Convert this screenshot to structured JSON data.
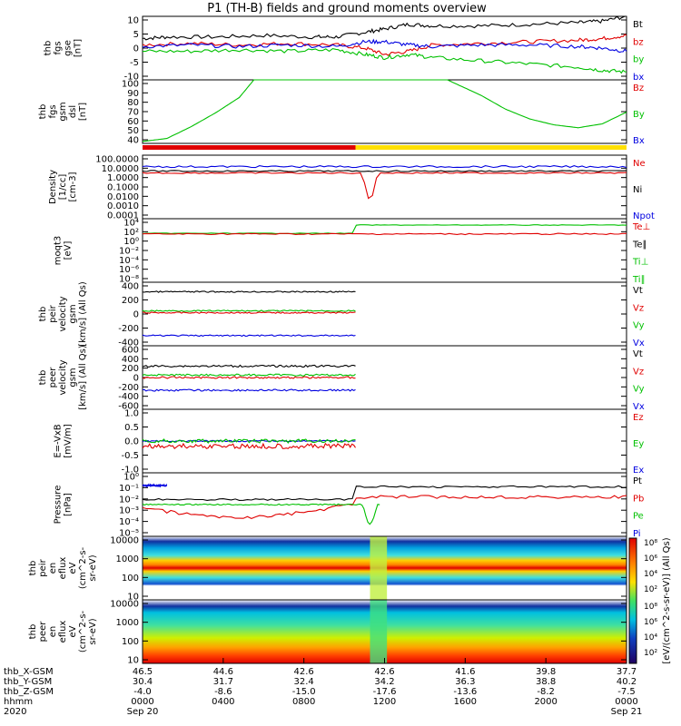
{
  "title": "P1 (TH-B) fields and ground moments overview",
  "chart_data": [
    {
      "type": "line",
      "panel": "fgs-gse",
      "ylabel": [
        "thb",
        "fgs",
        "gse",
        "[nT]"
      ],
      "yticks": [
        10,
        5,
        0,
        -5,
        -10
      ],
      "ylim": [
        -10,
        10
      ],
      "legend": [
        {
          "label": "Bt",
          "color": "#000000"
        },
        {
          "label": "bz",
          "color": "#e00000"
        },
        {
          "label": "by",
          "color": "#00c000"
        },
        {
          "label": "bx",
          "color": "#0000e0"
        }
      ],
      "series": [
        {
          "name": "Bt",
          "color": "#000000",
          "x": [
            0.0,
            0.05,
            0.15,
            0.25,
            0.35,
            0.4,
            0.46,
            0.5,
            0.55,
            0.6,
            0.7,
            0.8,
            0.9,
            0.95,
            1.0
          ],
          "values": [
            3,
            3.5,
            3.5,
            4,
            3.5,
            3.5,
            5,
            6,
            7.5,
            7,
            7,
            7.5,
            8,
            8.5,
            10
          ]
        },
        {
          "name": "bz",
          "color": "#e00000",
          "x": [
            0.0,
            0.1,
            0.2,
            0.3,
            0.4,
            0.46,
            0.5,
            0.55,
            0.6,
            0.7,
            0.8,
            0.9,
            0.95,
            1.0
          ],
          "values": [
            1,
            1.5,
            1,
            1.5,
            1,
            0,
            -2,
            -1,
            1,
            1.5,
            2,
            2.5,
            3,
            4
          ]
        },
        {
          "name": "by",
          "color": "#00c000",
          "x": [
            0.0,
            0.1,
            0.2,
            0.3,
            0.4,
            0.46,
            0.5,
            0.55,
            0.6,
            0.7,
            0.8,
            0.9,
            0.95,
            1.0
          ],
          "values": [
            -1,
            -1,
            -0.5,
            -1,
            -0.5,
            -2,
            -3,
            -2,
            -3,
            -4,
            -5,
            -6,
            -7,
            -7.5
          ]
        },
        {
          "name": "bx",
          "color": "#0000e0",
          "x": [
            0.0,
            0.1,
            0.2,
            0.3,
            0.4,
            0.46,
            0.5,
            0.55,
            0.6,
            0.7,
            0.8,
            0.9,
            0.95,
            1.0
          ],
          "values": [
            0.5,
            1,
            0.5,
            1,
            0.5,
            2,
            2,
            1,
            0.5,
            1,
            1,
            0.5,
            0,
            -1
          ]
        }
      ]
    },
    {
      "type": "line",
      "panel": "fgs-gsm-dsl",
      "ylabel": [
        "thb",
        "fgs",
        "gsm",
        "dsl",
        "[nT]"
      ],
      "yticks": [
        100,
        90,
        80,
        70,
        60,
        50,
        40
      ],
      "ylim": [
        35,
        100
      ],
      "legend": [
        {
          "label": "Bz",
          "color": "#e00000"
        },
        {
          "label": "By",
          "color": "#00c000"
        },
        {
          "label": "Bx",
          "color": "#0000e0"
        }
      ],
      "series": [
        {
          "name": "By",
          "color": "#00c000",
          "x": [
            0.0,
            0.05,
            0.1,
            0.15,
            0.2,
            0.23,
            0.63,
            0.7,
            0.75,
            0.8,
            0.85,
            0.9,
            0.95,
            1.0
          ],
          "values": [
            37,
            40,
            52,
            66,
            82,
            100,
            100,
            84,
            70,
            60,
            54,
            51,
            55,
            67
          ]
        }
      ]
    },
    {
      "type": "line",
      "panel": "density",
      "ylabel": [
        "Density",
        "[1/cc]",
        "[cm-3]"
      ],
      "yticks": [
        "100.0000",
        "10.0000",
        "1.0000",
        "0.1000",
        "0.0100",
        "0.0010",
        "0.0001"
      ],
      "legend": [
        {
          "label": "Ne",
          "color": "#e00000"
        },
        {
          "label": "Ni",
          "color": "#000000"
        },
        {
          "label": "Npot",
          "color": "#0000e0"
        }
      ]
    },
    {
      "type": "line",
      "panel": "moqt3",
      "ylabel": [
        "moqt3",
        "[eV]"
      ],
      "yticks": [
        "10⁴",
        "10²",
        "10⁰",
        "10⁻²",
        "10⁻⁴",
        "10⁻⁶",
        "10⁻⁸"
      ],
      "legend": [
        {
          "label": "Te⊥",
          "color": "#e00000"
        },
        {
          "label": "Te∥",
          "color": "#000000"
        },
        {
          "label": "Ti⊥",
          "color": "#00c000"
        },
        {
          "label": "Ti∥",
          "color": "#00c000"
        }
      ]
    },
    {
      "type": "line",
      "panel": "peir-velocity",
      "ylabel": [
        "thb",
        "peir",
        "velocity",
        "gsm",
        "[km/s] (All Qs)"
      ],
      "yticks": [
        400,
        200,
        0,
        -200,
        -400
      ],
      "ylim": [
        -400,
        400
      ],
      "legend": [
        {
          "label": "Vt",
          "color": "#000000"
        },
        {
          "label": "Vz",
          "color": "#e00000"
        },
        {
          "label": "Vy",
          "color": "#00c000"
        },
        {
          "label": "Vx",
          "color": "#0000e0"
        }
      ]
    },
    {
      "type": "line",
      "panel": "peer-velocity",
      "ylabel": [
        "thb",
        "peer",
        "velocity",
        "gsm",
        "[km/s] (All Qs)"
      ],
      "yticks": [
        600,
        400,
        200,
        0,
        -200,
        -400,
        -600
      ],
      "ylim": [
        -600,
        600
      ],
      "legend": [
        {
          "label": "Vt",
          "color": "#000000"
        },
        {
          "label": "Vz",
          "color": "#e00000"
        },
        {
          "label": "Vy",
          "color": "#00c000"
        },
        {
          "label": "Vx",
          "color": "#0000e0"
        }
      ]
    },
    {
      "type": "line",
      "panel": "efield",
      "ylabel": [
        "E=-VxB",
        "[mV/m]"
      ],
      "yticks": [
        "1.0",
        "0.5",
        "0.0",
        "-0.5",
        "-1.0"
      ],
      "ylim": [
        -1.25,
        1.25
      ],
      "legend": [
        {
          "label": "Ez",
          "color": "#e00000"
        },
        {
          "label": "Ey",
          "color": "#00c000"
        },
        {
          "label": "Ex",
          "color": "#0000e0"
        }
      ]
    },
    {
      "type": "line",
      "panel": "pressure",
      "ylabel": [
        "Pressure",
        "[nPa]"
      ],
      "yticks": [
        "10⁰",
        "10⁻¹",
        "10⁻²",
        "10⁻³",
        "10⁻⁴",
        "10⁻⁵"
      ],
      "legend": [
        {
          "label": "Pt",
          "color": "#000000"
        },
        {
          "label": "Pb",
          "color": "#e00000"
        },
        {
          "label": "Pe",
          "color": "#00c000"
        },
        {
          "label": "Pi",
          "color": "#0000e0"
        }
      ]
    },
    {
      "type": "heatmap",
      "panel": "peir-en-eflux",
      "ylabel": [
        "thb",
        "peir",
        "en",
        "eflux",
        "eV",
        "(cm^2-s-",
        "sr-eV)"
      ],
      "yticks": [
        "10000",
        "1000",
        "100",
        "10"
      ],
      "colorbar_ticks": [
        "10⁸",
        "10⁶",
        "10⁴",
        "10²"
      ]
    },
    {
      "type": "heatmap",
      "panel": "peer-en-eflux",
      "ylabel": [
        "thb",
        "peer",
        "en",
        "eflux",
        "eV",
        "(cm^2-s-",
        "sr-eV)"
      ],
      "yticks": [
        "10000",
        "1000",
        "100",
        "10"
      ],
      "colorbar_ticks": [
        "10⁸",
        "10⁶",
        "10⁴",
        "10²"
      ]
    }
  ],
  "colorbar_label": "[eV/(cm^2-s-sr-eV)] (All Qs)",
  "xaxis": {
    "row_labels": [
      "thb_X-GSM",
      "thb_Y-GSM",
      "thb_Z-GSM",
      "hhmm",
      "2020"
    ],
    "columns": [
      {
        "x": "46.5",
        "y": "30.4",
        "z": "-4.0",
        "hhmm": "0000",
        "date": "Sep 20"
      },
      {
        "x": "44.6",
        "y": "31.7",
        "z": "-8.6",
        "hhmm": "0400",
        "date": ""
      },
      {
        "x": "42.6",
        "y": "32.4",
        "z": "-15.0",
        "hhmm": "0800",
        "date": ""
      },
      {
        "x": "42.6",
        "y": "34.2",
        "z": "-17.6",
        "hhmm": "1200",
        "date": ""
      },
      {
        "x": "41.6",
        "y": "36.3",
        "z": "-13.6",
        "hhmm": "1600",
        "date": ""
      },
      {
        "x": "39.8",
        "y": "38.8",
        "z": "-8.2",
        "hhmm": "2000",
        "date": ""
      },
      {
        "x": "37.7",
        "y": "40.2",
        "z": "-7.5",
        "hhmm": "0000",
        "date": "Sep 21"
      }
    ]
  }
}
